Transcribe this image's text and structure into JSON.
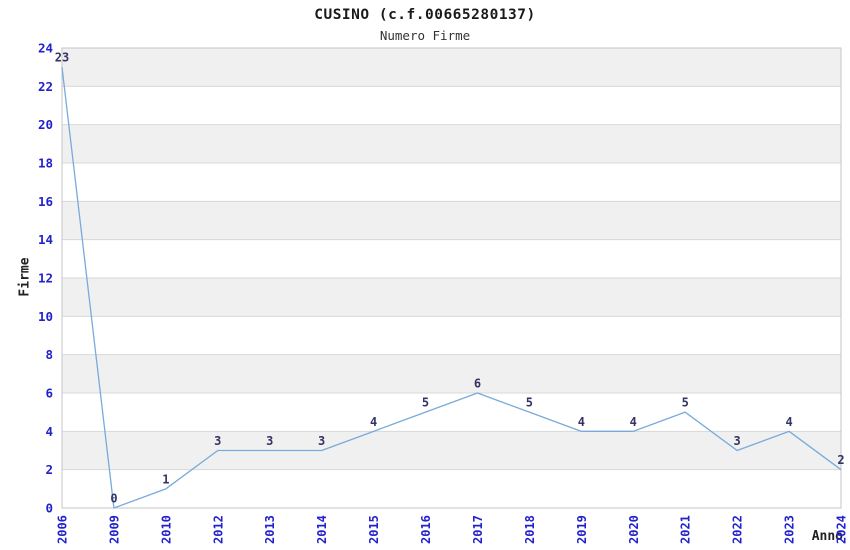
{
  "chart_data": {
    "type": "line",
    "title": "CUSINO (c.f.00665280137)",
    "subtitle": "Numero Firme",
    "xlabel": "Anno",
    "ylabel": "Firme",
    "categories": [
      "2006",
      "2009",
      "2010",
      "2012",
      "2013",
      "2014",
      "2015",
      "2016",
      "2017",
      "2018",
      "2019",
      "2020",
      "2021",
      "2022",
      "2023",
      "2024"
    ],
    "values": [
      23,
      0,
      1,
      3,
      3,
      3,
      4,
      5,
      6,
      5,
      4,
      4,
      5,
      3,
      4,
      2
    ],
    "ylim": [
      0,
      24
    ],
    "ytick_step": 2,
    "grid": true,
    "legend_position": "none",
    "show_point_labels": true,
    "colors": {
      "line": "#78aadc",
      "tick_label": "#2222cc",
      "point_label": "#333366",
      "band": "#f0f0f0",
      "gridline": "#d8d8d8",
      "plot_border": "#c6c6c6",
      "title": "#1a1a1a",
      "subtitle": "#333333",
      "axis_title": "#222222",
      "background": "#ffffff"
    }
  }
}
